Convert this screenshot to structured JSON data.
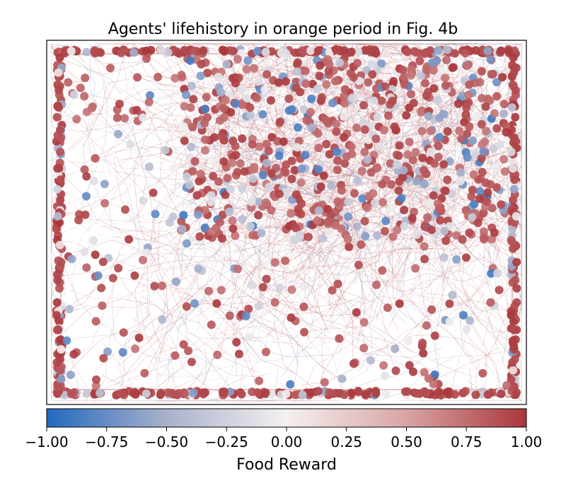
{
  "chart_data": {
    "type": "scatter",
    "title": "Agents' lifehistory in orange period in Fig. 4b",
    "xlabel": "",
    "ylabel": "",
    "axes_ticks_visible": false,
    "grid": false,
    "legend": "none",
    "description_of_marks": "dense agent trajectory lines plus scatter dots colored by food reward; dots concentrate along the arena border and the upper-right region",
    "colorbar": {
      "label": "Food Reward",
      "orientation": "horizontal",
      "placement": "bottom",
      "colormap": "vlag",
      "range": [
        -1.0,
        1.0
      ],
      "ticks": [
        -1.0,
        -0.75,
        -0.5,
        -0.25,
        0.0,
        0.25,
        0.5,
        0.75,
        1.0
      ],
      "tick_labels": [
        "−1.00",
        "−0.75",
        "−0.50",
        "−0.25",
        "0.00",
        "0.25",
        "0.50",
        "0.75",
        "1.00"
      ],
      "color_stops": [
        "#2369bd",
        "#a9b1cc",
        "#f4f0ef",
        "#d9a4a4",
        "#a9373b"
      ]
    },
    "dominant_values": {
      "border_reward_mostly": 1.0,
      "interior_reward_mix": [
        -1.0,
        1.0
      ]
    }
  }
}
